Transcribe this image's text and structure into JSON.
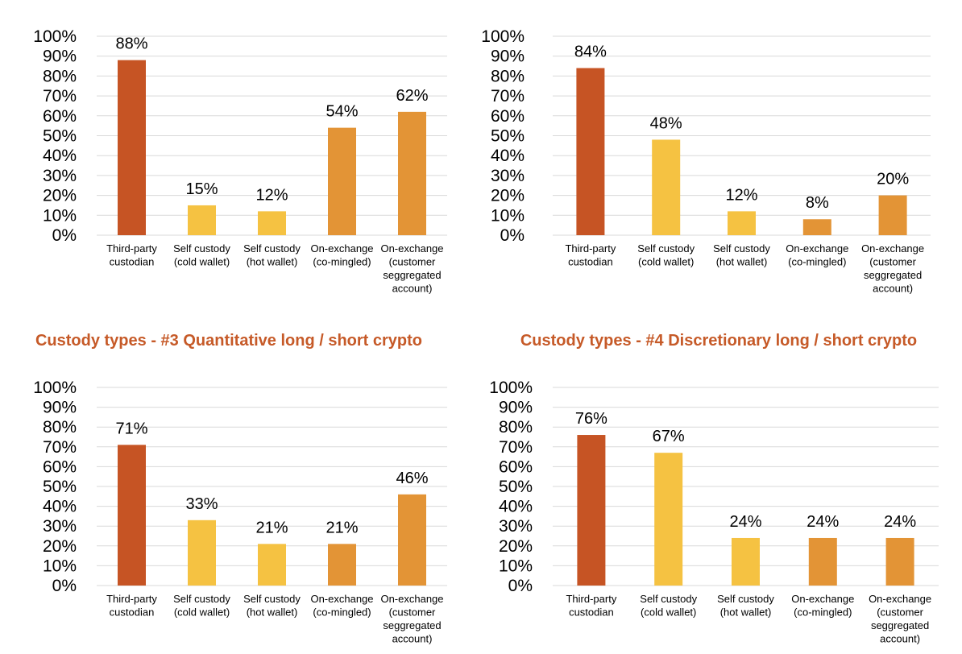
{
  "chart_data": [
    {
      "type": "bar",
      "title": "",
      "categories": [
        [
          "Third-party",
          "custodian"
        ],
        [
          "Self custody",
          "(cold wallet)"
        ],
        [
          "Self custody",
          "(hot wallet)"
        ],
        [
          "On-exchange",
          "(co-mingled)"
        ],
        [
          "On-exchange",
          "(customer",
          "seggregated",
          "account)"
        ]
      ],
      "values": [
        88,
        15,
        12,
        54,
        62
      ],
      "data_labels": [
        "88%",
        "15%",
        "12%",
        "54%",
        "62%"
      ],
      "colors": [
        "#c65424",
        "#f5c242",
        "#f5c242",
        "#e39436",
        "#e39436"
      ],
      "ylim": [
        0,
        100
      ],
      "yticks": [
        "0%",
        "10%",
        "20%",
        "30%",
        "40%",
        "50%",
        "60%",
        "70%",
        "80%",
        "90%",
        "100%"
      ],
      "xlabel": "",
      "ylabel": "",
      "grid": true
    },
    {
      "type": "bar",
      "title": "",
      "categories": [
        [
          "Third-party",
          "custodian"
        ],
        [
          "Self custody",
          "(cold wallet)"
        ],
        [
          "Self custody",
          "(hot wallet)"
        ],
        [
          "On-exchange",
          "(co-mingled)"
        ],
        [
          "On-exchange",
          "(customer",
          "seggregated",
          "account)"
        ]
      ],
      "values": [
        84,
        48,
        12,
        8,
        20
      ],
      "data_labels": [
        "84%",
        "48%",
        "12%",
        "8%",
        "20%"
      ],
      "colors": [
        "#c65424",
        "#f5c242",
        "#f5c242",
        "#e39436",
        "#e39436"
      ],
      "ylim": [
        0,
        100
      ],
      "yticks": [
        "0%",
        "10%",
        "20%",
        "30%",
        "40%",
        "50%",
        "60%",
        "70%",
        "80%",
        "90%",
        "100%"
      ],
      "xlabel": "",
      "ylabel": "",
      "grid": true
    },
    {
      "type": "bar",
      "title": "Custody types - #3 Quantitative long / short crypto",
      "categories": [
        [
          "Third-party",
          "custodian"
        ],
        [
          "Self custody",
          "(cold wallet)"
        ],
        [
          "Self custody",
          "(hot wallet)"
        ],
        [
          "On-exchange",
          "(co-mingled)"
        ],
        [
          "On-exchange",
          "(customer",
          "seggregated",
          "account)"
        ]
      ],
      "values": [
        71,
        33,
        21,
        21,
        46
      ],
      "data_labels": [
        "71%",
        "33%",
        "21%",
        "21%",
        "46%"
      ],
      "colors": [
        "#c65424",
        "#f5c242",
        "#f5c242",
        "#e39436",
        "#e39436"
      ],
      "ylim": [
        0,
        100
      ],
      "yticks": [
        "0%",
        "10%",
        "20%",
        "30%",
        "40%",
        "50%",
        "60%",
        "70%",
        "80%",
        "90%",
        "100%"
      ],
      "xlabel": "",
      "ylabel": "",
      "grid": true
    },
    {
      "type": "bar",
      "title": "Custody types - #4 Discretionary long / short crypto",
      "categories": [
        [
          "Third-party",
          "custodian"
        ],
        [
          "Self custody",
          "(cold wallet)"
        ],
        [
          "Self custody",
          "(hot wallet)"
        ],
        [
          "On-exchange",
          "(co-mingled)"
        ],
        [
          "On-exchange",
          "(customer",
          "seggregated",
          "account)"
        ]
      ],
      "values": [
        76,
        67,
        24,
        24,
        24
      ],
      "data_labels": [
        "76%",
        "67%",
        "24%",
        "24%",
        "24%"
      ],
      "colors": [
        "#c65424",
        "#f5c242",
        "#f5c242",
        "#e39436",
        "#e39436"
      ],
      "ylim": [
        0,
        100
      ],
      "yticks": [
        "0%",
        "10%",
        "20%",
        "30%",
        "40%",
        "50%",
        "60%",
        "70%",
        "80%",
        "90%",
        "100%"
      ],
      "xlabel": "",
      "ylabel": "",
      "grid": true
    }
  ]
}
